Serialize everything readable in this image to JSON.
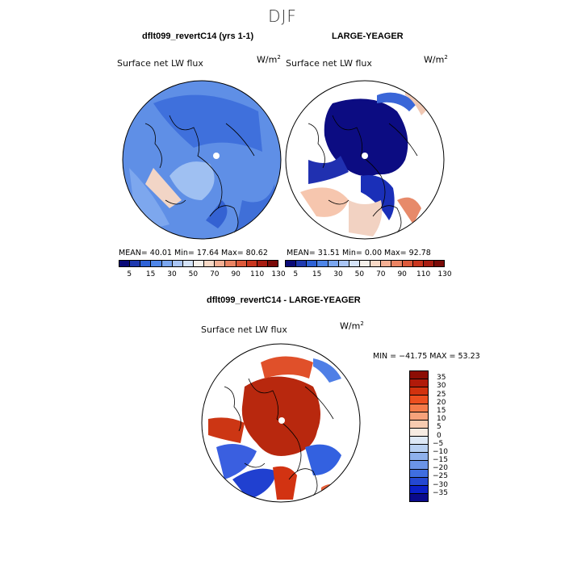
{
  "suptitle": "DJF",
  "panels": [
    {
      "title": "dflt099_revertC14 (yrs 1-1)",
      "field": "Surface net LW flux",
      "units": "W/m",
      "stats": "MEAN=  40.01   Min=  17.64   Max=  80.62"
    },
    {
      "title": "LARGE-YEAGER",
      "field": "Surface net LW flux",
      "units": "W/m",
      "stats": "MEAN=  31.51   Min=   0.00   Max=  92.78"
    },
    {
      "title": "dflt099_revertC14 - LARGE-YEAGER",
      "field": "Surface net LW flux",
      "units": "W/m",
      "stats": "MIN = −41.75 MAX =  53.23"
    }
  ],
  "units_exponent": "2",
  "colorbar_top": {
    "ticks": [
      "5",
      "15",
      "30",
      "50",
      "70",
      "90",
      "110",
      "130"
    ],
    "colors": [
      "#0a0a78",
      "#1f3ab0",
      "#2e62d6",
      "#4f86e8",
      "#7aa6ef",
      "#a9c5f4",
      "#d4e3f8",
      "#f5f0ea",
      "#f8d9c6",
      "#f4b094",
      "#ea8463",
      "#dd5a3b",
      "#c9361f",
      "#a81d12",
      "#7a0a08"
    ]
  },
  "colorbar_diff": {
    "ticks": [
      "35",
      "30",
      "25",
      "20",
      "15",
      "10",
      "5",
      "0",
      "−5",
      "−10",
      "−15",
      "−20",
      "−25",
      "−30",
      "−35"
    ],
    "colors": [
      "#8c0d04",
      "#b11a0a",
      "#d2320e",
      "#ec4f1f",
      "#f47b4a",
      "#f6a27b",
      "#f7cbb0",
      "#f6ebe2",
      "#dde8f6",
      "#b8d0f2",
      "#8fb1ec",
      "#6b94e6",
      "#3f6ee0",
      "#2448d2",
      "#0b20c8",
      "#0a0a8c"
    ]
  },
  "icons": {
    "colorbar": "colorbar-legend",
    "map": "polar-stereographic-map"
  }
}
